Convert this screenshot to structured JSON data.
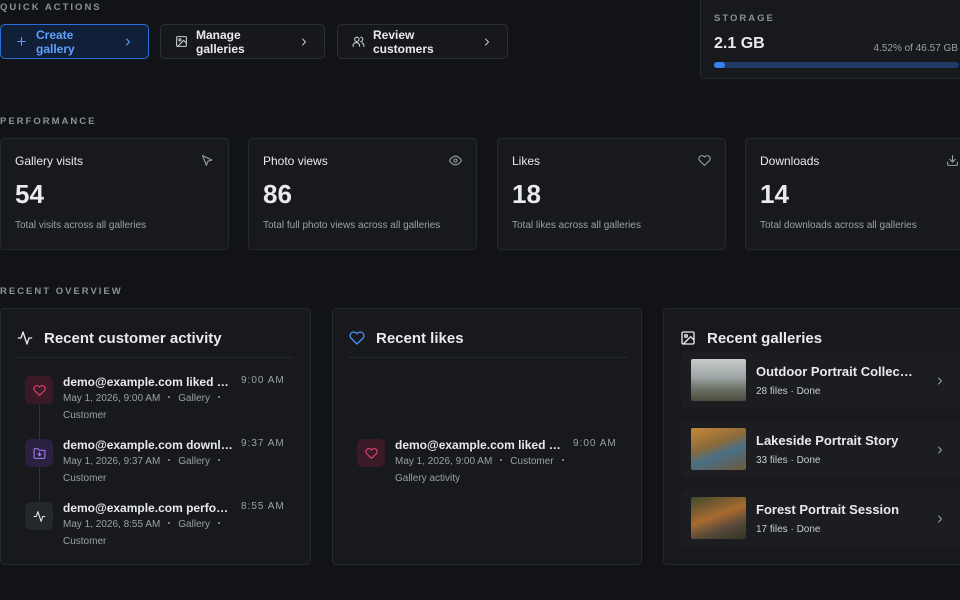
{
  "quick_actions": {
    "title": "QUICK ACTIONS",
    "buttons": [
      "Create gallery",
      "Manage galleries",
      "Review customers"
    ]
  },
  "storage": {
    "title": "STORAGE",
    "used": "2.1 GB",
    "usage_label": "4.52% of 46.57 GB",
    "used_percent": 4.52
  },
  "performance": {
    "title": "PERFORMANCE",
    "cards": [
      {
        "title": "Gallery visits",
        "value": 54,
        "caption": "Total visits across all galleries"
      },
      {
        "title": "Photo views",
        "value": 86,
        "caption": "Total full photo views across all galleries"
      },
      {
        "title": "Likes",
        "value": 18,
        "caption": "Total likes across all galleries"
      },
      {
        "title": "Downloads",
        "value": 14,
        "caption": "Total downloads across all galleries"
      }
    ]
  },
  "recent_overview": {
    "title": "RECENT OVERVIEW",
    "customer_activity": {
      "title": "Recent customer activity",
      "items": [
        {
          "text": "demo@example.com liked …",
          "time": "9:00 AM",
          "meta": [
            "May 1, 2026, 9:00 AM",
            "Gallery",
            "Customer"
          ]
        },
        {
          "text": "demo@example.com downl…",
          "time": "9:37 AM",
          "meta": [
            "May 1, 2026, 9:37 AM",
            "Gallery",
            "Customer"
          ]
        },
        {
          "text": "demo@example.com perfo…",
          "time": "8:55 AM",
          "meta": [
            "May 1, 2026, 8:55 AM",
            "Gallery",
            "Customer"
          ]
        }
      ]
    },
    "likes": {
      "title": "Recent likes",
      "items": [
        {
          "text": "demo@example.com liked …",
          "time": "9:00 AM",
          "meta": [
            "May 1, 2026, 9:00 AM",
            "Customer",
            "Gallery activity"
          ]
        }
      ]
    },
    "galleries": {
      "title": "Recent galleries",
      "items": [
        {
          "name": "Outdoor Portrait Collec…",
          "meta": "28 files · Done"
        },
        {
          "name": "Lakeside Portrait Story",
          "meta": "33 files · Done"
        },
        {
          "name": "Forest Portrait Session",
          "meta": "17 files · Done"
        }
      ]
    }
  }
}
